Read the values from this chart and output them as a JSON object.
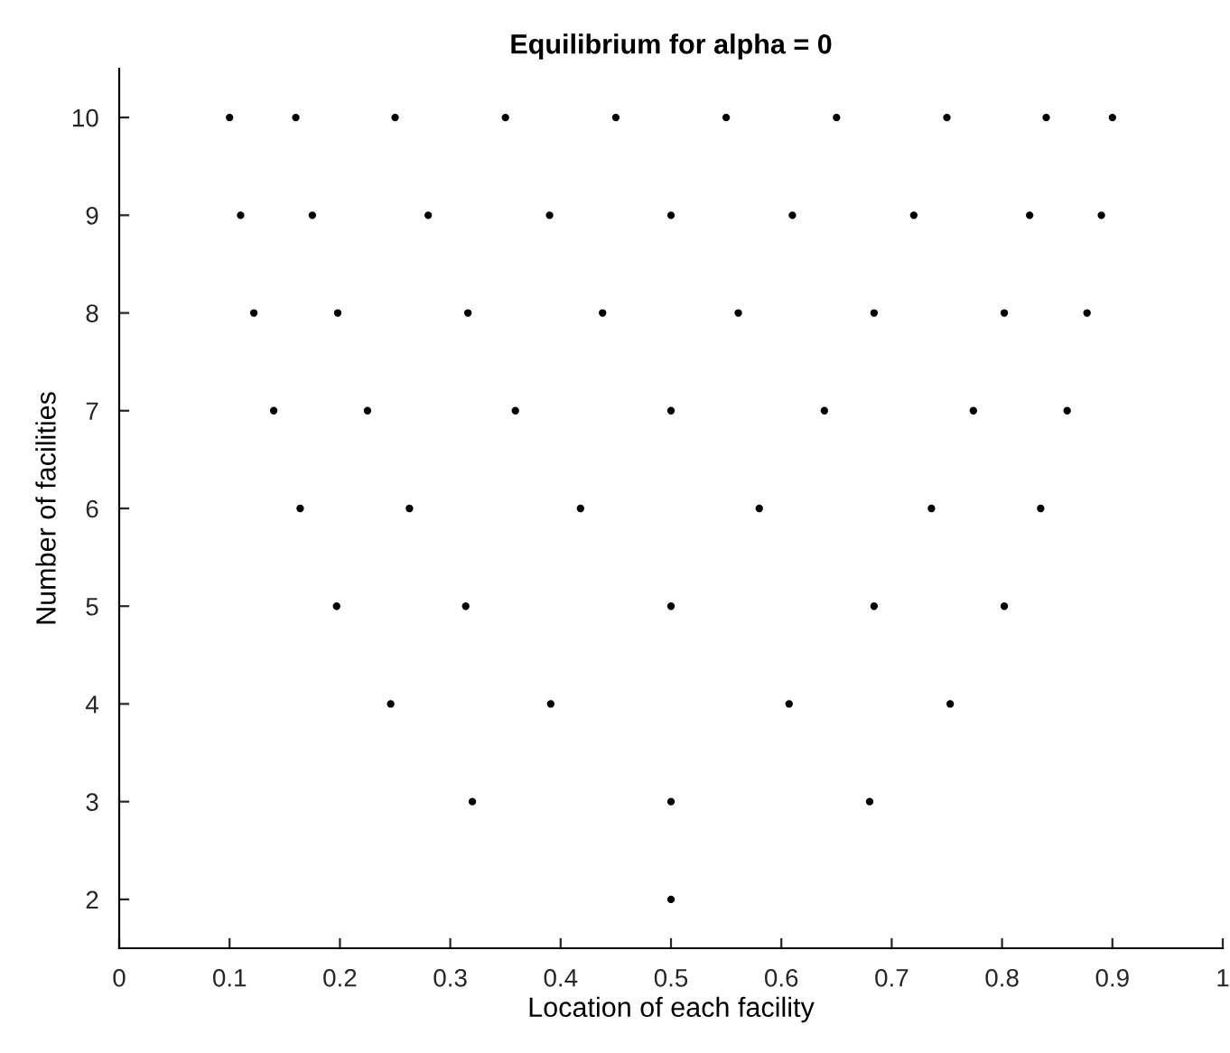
{
  "chart_data": {
    "type": "scatter",
    "title": "Equilibrium for alpha = 0",
    "xlabel": "Location of each facility",
    "ylabel": "Number of facilities",
    "xlim": [
      0,
      1
    ],
    "ylim": [
      1.5,
      10.5
    ],
    "xticks": [
      0,
      0.1,
      0.2,
      0.3,
      0.4,
      0.5,
      0.6,
      0.7,
      0.8,
      0.9,
      1
    ],
    "yticks": [
      2,
      3,
      4,
      5,
      6,
      7,
      8,
      9,
      10
    ],
    "marker": "circle",
    "grid": false,
    "legend": false,
    "series": [
      {
        "color": "#000000",
        "x": [
          0.1,
          0.16,
          0.25,
          0.35,
          0.45,
          0.55,
          0.65,
          0.75,
          0.84,
          0.9,
          0.11,
          0.175,
          0.28,
          0.39,
          0.5,
          0.61,
          0.72,
          0.825,
          0.89,
          0.122,
          0.198,
          0.316,
          0.438,
          0.561,
          0.684,
          0.802,
          0.877,
          0.14,
          0.225,
          0.359,
          0.5,
          0.639,
          0.774,
          0.859,
          0.164,
          0.263,
          0.418,
          0.58,
          0.736,
          0.835,
          0.197,
          0.314,
          0.5,
          0.684,
          0.802,
          0.246,
          0.391,
          0.607,
          0.753,
          0.32,
          0.5,
          0.68,
          0.5
        ],
        "values": [
          10,
          10,
          10,
          10,
          10,
          10,
          10,
          10,
          10,
          10,
          9,
          9,
          9,
          9,
          9,
          9,
          9,
          9,
          9,
          8,
          8,
          8,
          8,
          8,
          8,
          8,
          8,
          7,
          7,
          7,
          7,
          7,
          7,
          7,
          6,
          6,
          6,
          6,
          6,
          6,
          5,
          5,
          5,
          5,
          5,
          4,
          4,
          4,
          4,
          3,
          3,
          3,
          2
        ]
      }
    ]
  }
}
